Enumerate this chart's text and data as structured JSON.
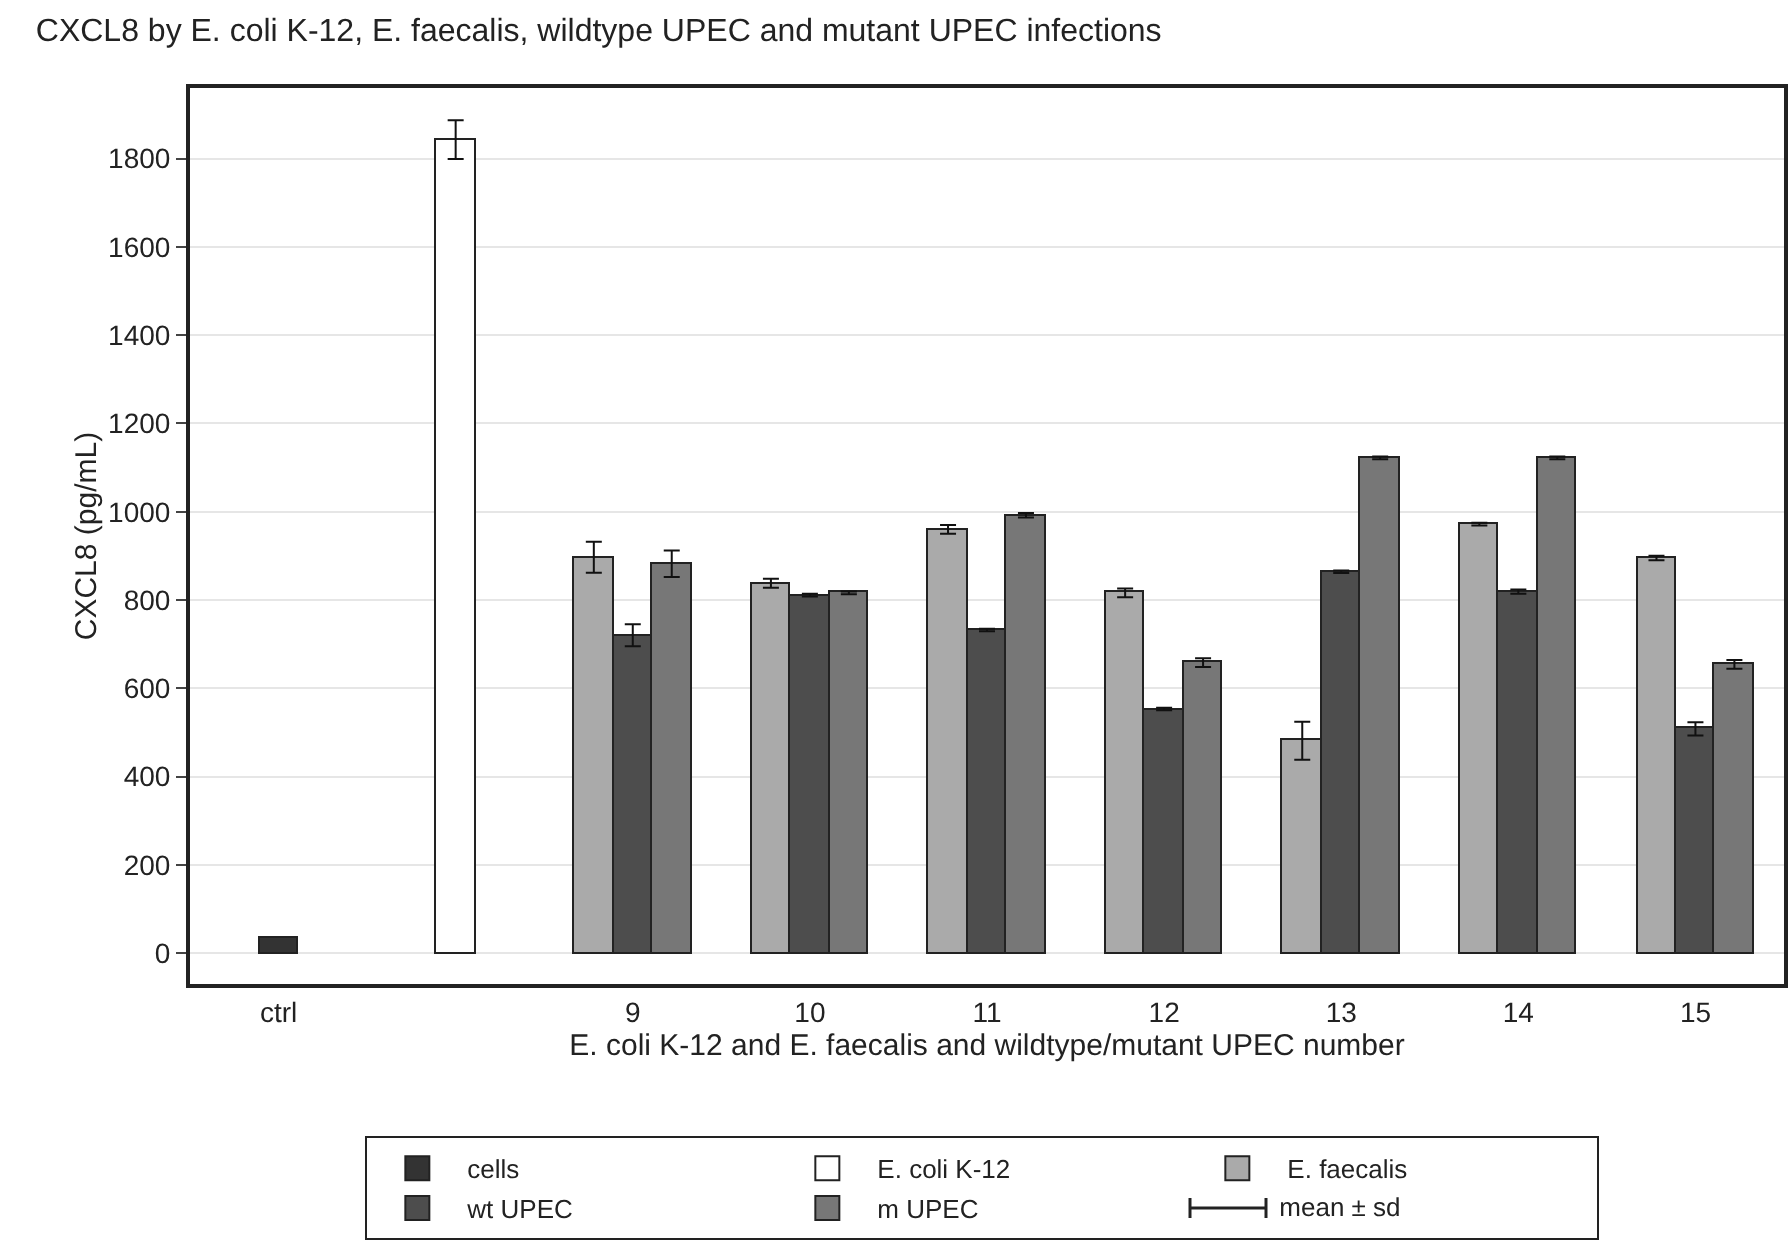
{
  "chart_data": {
    "type": "bar",
    "title": "CXCL8 by E. coli K-12, E. faecalis, wildtype UPEC and mutant UPEC infections",
    "xlabel": "E. coli K-12 and E. faecalis and wildtype/mutant UPEC number",
    "ylabel": "CXCL8 (pg/mL)",
    "categories": [
      "ctrl",
      null,
      "9",
      "10",
      "11",
      "12",
      "13",
      "14",
      "15"
    ],
    "series": [
      {
        "name": "cells",
        "color": "#333333",
        "values": [
          35,
          null,
          null,
          null,
          null,
          null,
          null,
          null,
          null
        ]
      },
      {
        "name": "E. coli K-12",
        "color": "#ffffff",
        "values": [
          null,
          1843,
          null,
          null,
          null,
          null,
          null,
          null,
          null
        ],
        "errors": [
          null,
          44,
          null,
          null,
          null,
          null,
          null,
          null,
          null
        ]
      },
      {
        "name": "E. faecalis",
        "color": "#aaaaaa",
        "values": [
          null,
          null,
          897,
          838,
          960,
          816,
          481,
          972,
          895
        ],
        "errors": [
          null,
          null,
          35,
          10,
          10,
          10,
          43,
          3,
          5
        ]
      },
      {
        "name": "wt UPEC",
        "color": "#4d4d4d",
        "values": [
          null,
          null,
          720,
          811,
          732,
          553,
          864,
          819,
          508
        ],
        "errors": [
          null,
          null,
          25,
          3,
          3,
          3,
          3,
          5,
          15
        ]
      },
      {
        "name": "m UPEC",
        "color": "#777777",
        "values": [
          null,
          null,
          882,
          816,
          992,
          658,
          1122,
          1122,
          654
        ],
        "errors": [
          null,
          null,
          30,
          3,
          5,
          10,
          3,
          3,
          10
        ]
      }
    ],
    "annotations": [
      "mean ± sd"
    ],
    "ylim": [
      -70,
      1960
    ],
    "yticks": [
      0,
      200,
      400,
      600,
      800,
      1000,
      1200,
      1400,
      1600,
      1800
    ],
    "grid": "y",
    "legend": "bottom"
  }
}
